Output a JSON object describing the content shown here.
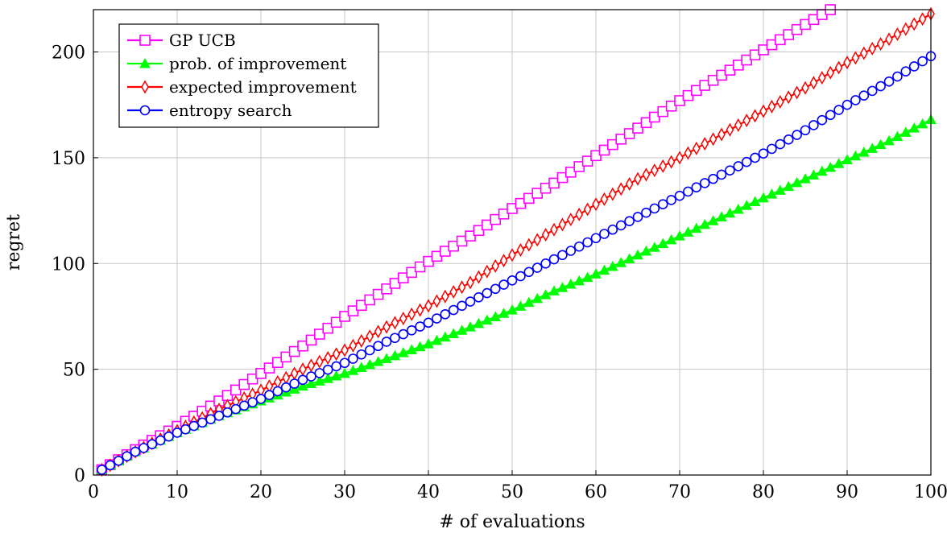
{
  "chart_data": {
    "type": "line",
    "title": "",
    "xlabel": "# of evaluations",
    "ylabel": "regret",
    "xlim": [
      0,
      100
    ],
    "ylim": [
      0,
      220
    ],
    "xticks": [
      0,
      10,
      20,
      30,
      40,
      50,
      60,
      70,
      80,
      90,
      100
    ],
    "yticks": [
      0,
      50,
      100,
      150,
      200
    ],
    "grid": true,
    "legend_position": "top-left",
    "series": [
      {
        "name": "GP UCB",
        "color": "#ff00ff",
        "marker": "square",
        "x": [
          1,
          5,
          10,
          15,
          20,
          25,
          30,
          35,
          40,
          45,
          50,
          55,
          60,
          65,
          70,
          75,
          80,
          85,
          88
        ],
        "y": [
          2.5,
          12,
          23,
          35,
          48,
          61,
          75,
          88,
          101,
          113,
          126,
          138,
          151,
          164,
          177,
          189,
          201,
          213,
          220
        ]
      },
      {
        "name": "prob. of improvement",
        "color": "#00ff00",
        "marker": "triangle",
        "x": [
          1,
          5,
          10,
          15,
          20,
          25,
          30,
          35,
          40,
          45,
          50,
          55,
          60,
          65,
          70,
          75,
          80,
          85,
          90,
          95,
          100
        ],
        "y": [
          2.5,
          11,
          20,
          28,
          35,
          42,
          48,
          55,
          62,
          70,
          78,
          87,
          95,
          104,
          113,
          122,
          131,
          140,
          149,
          158,
          168
        ]
      },
      {
        "name": "expected improvement",
        "color": "#ff0000",
        "marker": "diamond",
        "x": [
          1,
          5,
          10,
          15,
          20,
          25,
          30,
          35,
          40,
          45,
          50,
          55,
          60,
          65,
          70,
          75,
          80,
          85,
          90,
          95,
          100
        ],
        "y": [
          2.5,
          11,
          21,
          31,
          40,
          50,
          59,
          70,
          80,
          91,
          104,
          116,
          128,
          140,
          150,
          161,
          172,
          183,
          195,
          206,
          218
        ]
      },
      {
        "name": "entropy search",
        "color": "#0000ff",
        "marker": "circle",
        "x": [
          1,
          5,
          10,
          15,
          20,
          25,
          30,
          35,
          40,
          45,
          50,
          55,
          60,
          65,
          70,
          75,
          80,
          85,
          90,
          95,
          100
        ],
        "y": [
          2.5,
          11,
          20,
          28,
          36,
          45,
          53,
          63,
          72,
          82,
          92,
          102,
          112,
          122,
          132,
          142,
          152,
          163,
          175,
          186,
          198
        ]
      }
    ]
  }
}
